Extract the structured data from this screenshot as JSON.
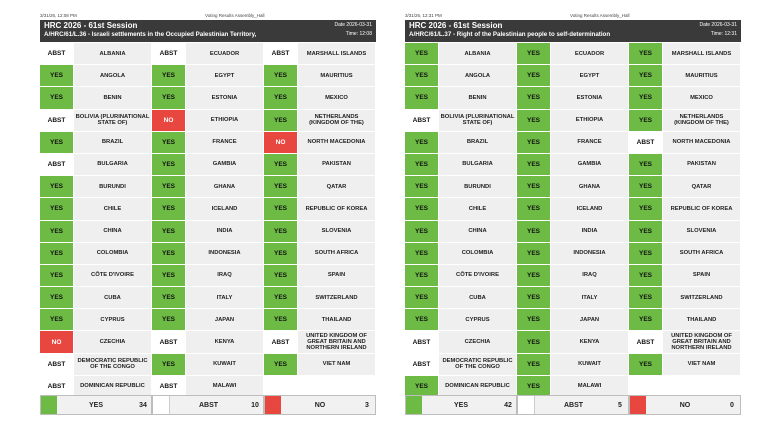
{
  "panels": [
    {
      "timestamp": "3/31/26, 12:08 PM",
      "app_title": "Voting Results Assembly_Hall",
      "session": "HRC 2026 - 61st Session",
      "resolution": "A/HRC/61/L.36 - Israeli settlements in the Occupied Palestinian Territory,",
      "date": "Date 2026-03-31",
      "time": "Time: 12:08",
      "rows": [
        [
          {
            "v": "ABST",
            "c": "ALBANIA"
          },
          {
            "v": "ABST",
            "c": "ECUADOR"
          },
          {
            "v": "ABST",
            "c": "MARSHALL ISLANDS"
          }
        ],
        [
          {
            "v": "YES",
            "c": "ANGOLA"
          },
          {
            "v": "YES",
            "c": "EGYPT"
          },
          {
            "v": "YES",
            "c": "MAURITIUS"
          }
        ],
        [
          {
            "v": "YES",
            "c": "BENIN"
          },
          {
            "v": "YES",
            "c": "ESTONIA"
          },
          {
            "v": "YES",
            "c": "MEXICO"
          }
        ],
        [
          {
            "v": "ABST",
            "c": "BOLIVIA (PLURINATIONAL STATE OF)"
          },
          {
            "v": "NO",
            "c": "ETHIOPIA"
          },
          {
            "v": "YES",
            "c": "NETHERLANDS (KINGDOM OF THE)"
          }
        ],
        [
          {
            "v": "YES",
            "c": "BRAZIL"
          },
          {
            "v": "YES",
            "c": "FRANCE"
          },
          {
            "v": "NO",
            "c": "NORTH MACEDONIA"
          }
        ],
        [
          {
            "v": "ABST",
            "c": "BULGARIA"
          },
          {
            "v": "YES",
            "c": "GAMBIA"
          },
          {
            "v": "YES",
            "c": "PAKISTAN"
          }
        ],
        [
          {
            "v": "YES",
            "c": "BURUNDI"
          },
          {
            "v": "YES",
            "c": "GHANA"
          },
          {
            "v": "YES",
            "c": "QATAR"
          }
        ],
        [
          {
            "v": "YES",
            "c": "CHILE"
          },
          {
            "v": "YES",
            "c": "ICELAND"
          },
          {
            "v": "YES",
            "c": "REPUBLIC OF KOREA"
          }
        ],
        [
          {
            "v": "YES",
            "c": "CHINA"
          },
          {
            "v": "YES",
            "c": "INDIA"
          },
          {
            "v": "YES",
            "c": "SLOVENIA"
          }
        ],
        [
          {
            "v": "YES",
            "c": "COLOMBIA"
          },
          {
            "v": "YES",
            "c": "INDONESIA"
          },
          {
            "v": "YES",
            "c": "SOUTH AFRICA"
          }
        ],
        [
          {
            "v": "YES",
            "c": "CÔTE D'IVOIRE"
          },
          {
            "v": "YES",
            "c": "IRAQ"
          },
          {
            "v": "YES",
            "c": "SPAIN"
          }
        ],
        [
          {
            "v": "YES",
            "c": "CUBA"
          },
          {
            "v": "YES",
            "c": "ITALY"
          },
          {
            "v": "YES",
            "c": "SWITZERLAND"
          }
        ],
        [
          {
            "v": "YES",
            "c": "CYPRUS"
          },
          {
            "v": "YES",
            "c": "JAPAN"
          },
          {
            "v": "YES",
            "c": "THAILAND"
          }
        ],
        [
          {
            "v": "NO",
            "c": "CZECHIA"
          },
          {
            "v": "ABST",
            "c": "KENYA"
          },
          {
            "v": "ABST",
            "c": "UNITED KINGDOM OF GREAT BRITAIN AND NORTHERN IRELAND"
          }
        ],
        [
          {
            "v": "ABST",
            "c": "DEMOCRATIC REPUBLIC OF THE CONGO"
          },
          {
            "v": "YES",
            "c": "KUWAIT"
          },
          {
            "v": "YES",
            "c": "VIET NAM"
          }
        ],
        [
          {
            "v": "ABST",
            "c": "DOMINICAN REPUBLIC"
          },
          {
            "v": "ABST",
            "c": "MALAWI"
          },
          {
            "v": "",
            "c": ""
          }
        ]
      ],
      "totals": {
        "yes_label": "YES",
        "yes": "34",
        "abst_label": "ABST",
        "abst": "10",
        "no_label": "NO",
        "no": "3"
      }
    },
    {
      "timestamp": "3/31/26, 12:31 PM",
      "app_title": "Voting Results Assembly_Hall",
      "session": "HRC 2026 - 61st Session",
      "resolution": "A/HRC/61/L.37 - Right of the Palestinian people to self-determination",
      "date": "Date 2026-03-31",
      "time": "Time: 12:31",
      "rows": [
        [
          {
            "v": "YES",
            "c": "ALBANIA"
          },
          {
            "v": "YES",
            "c": "ECUADOR"
          },
          {
            "v": "YES",
            "c": "MARSHALL ISLANDS"
          }
        ],
        [
          {
            "v": "YES",
            "c": "ANGOLA"
          },
          {
            "v": "YES",
            "c": "EGYPT"
          },
          {
            "v": "YES",
            "c": "MAURITIUS"
          }
        ],
        [
          {
            "v": "YES",
            "c": "BENIN"
          },
          {
            "v": "YES",
            "c": "ESTONIA"
          },
          {
            "v": "YES",
            "c": "MEXICO"
          }
        ],
        [
          {
            "v": "ABST",
            "c": "BOLIVIA (PLURINATIONAL STATE OF)"
          },
          {
            "v": "YES",
            "c": "ETHIOPIA"
          },
          {
            "v": "YES",
            "c": "NETHERLANDS (KINGDOM OF THE)"
          }
        ],
        [
          {
            "v": "YES",
            "c": "BRAZIL"
          },
          {
            "v": "YES",
            "c": "FRANCE"
          },
          {
            "v": "ABST",
            "c": "NORTH MACEDONIA"
          }
        ],
        [
          {
            "v": "YES",
            "c": "BULGARIA"
          },
          {
            "v": "YES",
            "c": "GAMBIA"
          },
          {
            "v": "YES",
            "c": "PAKISTAN"
          }
        ],
        [
          {
            "v": "YES",
            "c": "BURUNDI"
          },
          {
            "v": "YES",
            "c": "GHANA"
          },
          {
            "v": "YES",
            "c": "QATAR"
          }
        ],
        [
          {
            "v": "YES",
            "c": "CHILE"
          },
          {
            "v": "YES",
            "c": "ICELAND"
          },
          {
            "v": "YES",
            "c": "REPUBLIC OF KOREA"
          }
        ],
        [
          {
            "v": "YES",
            "c": "CHINA"
          },
          {
            "v": "YES",
            "c": "INDIA"
          },
          {
            "v": "YES",
            "c": "SLOVENIA"
          }
        ],
        [
          {
            "v": "YES",
            "c": "COLOMBIA"
          },
          {
            "v": "YES",
            "c": "INDONESIA"
          },
          {
            "v": "YES",
            "c": "SOUTH AFRICA"
          }
        ],
        [
          {
            "v": "YES",
            "c": "CÔTE D'IVOIRE"
          },
          {
            "v": "YES",
            "c": "IRAQ"
          },
          {
            "v": "YES",
            "c": "SPAIN"
          }
        ],
        [
          {
            "v": "YES",
            "c": "CUBA"
          },
          {
            "v": "YES",
            "c": "ITALY"
          },
          {
            "v": "YES",
            "c": "SWITZERLAND"
          }
        ],
        [
          {
            "v": "YES",
            "c": "CYPRUS"
          },
          {
            "v": "YES",
            "c": "JAPAN"
          },
          {
            "v": "YES",
            "c": "THAILAND"
          }
        ],
        [
          {
            "v": "ABST",
            "c": "CZECHIA"
          },
          {
            "v": "YES",
            "c": "KENYA"
          },
          {
            "v": "ABST",
            "c": "UNITED KINGDOM OF GREAT BRITAIN AND NORTHERN IRELAND"
          }
        ],
        [
          {
            "v": "ABST",
            "c": "DEMOCRATIC REPUBLIC OF THE CONGO"
          },
          {
            "v": "YES",
            "c": "KUWAIT"
          },
          {
            "v": "YES",
            "c": "VIET NAM"
          }
        ],
        [
          {
            "v": "YES",
            "c": "DOMINICAN REPUBLIC"
          },
          {
            "v": "YES",
            "c": "MALAWI"
          },
          {
            "v": "",
            "c": ""
          }
        ]
      ],
      "totals": {
        "yes_label": "YES",
        "yes": "42",
        "abst_label": "ABST",
        "abst": "5",
        "no_label": "NO",
        "no": "0"
      }
    }
  ]
}
